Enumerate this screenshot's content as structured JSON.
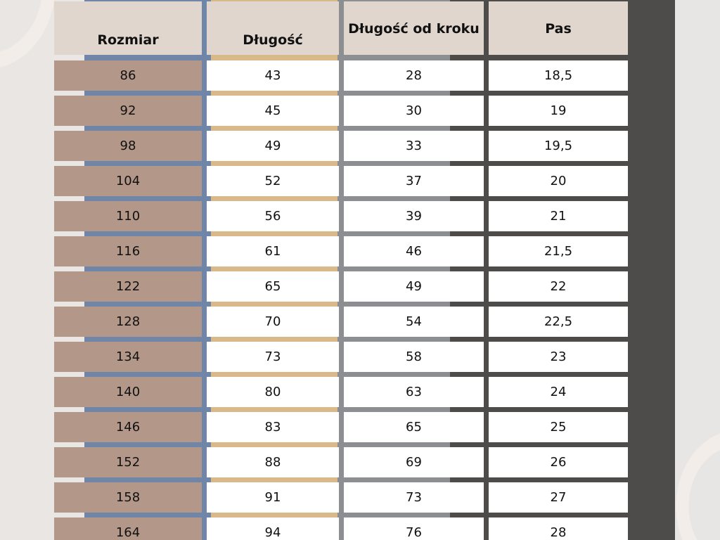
{
  "table": {
    "headers": [
      "Rozmiar",
      "Długość",
      "Długość od kroku",
      "Pas"
    ],
    "rows": [
      [
        "86",
        "43",
        "28",
        "18,5"
      ],
      [
        "92",
        "45",
        "30",
        "19"
      ],
      [
        "98",
        "49",
        "33",
        "19,5"
      ],
      [
        "104",
        "52",
        "37",
        "20"
      ],
      [
        "110",
        "56",
        "39",
        "21"
      ],
      [
        "116",
        "61",
        "46",
        "21,5"
      ],
      [
        "122",
        "65",
        "49",
        "22"
      ],
      [
        "128",
        "70",
        "54",
        "22,5"
      ],
      [
        "134",
        "73",
        "58",
        "23"
      ],
      [
        "140",
        "80",
        "63",
        "24"
      ],
      [
        "146",
        "83",
        "65",
        "25"
      ],
      [
        "152",
        "88",
        "69",
        "26"
      ],
      [
        "158",
        "91",
        "73",
        "27"
      ],
      [
        "164",
        "94",
        "76",
        "28"
      ]
    ]
  },
  "colors": {
    "header_bg": "#e0d6ce",
    "size_bg": "#b39789",
    "cell_bg": "#ffffff"
  }
}
